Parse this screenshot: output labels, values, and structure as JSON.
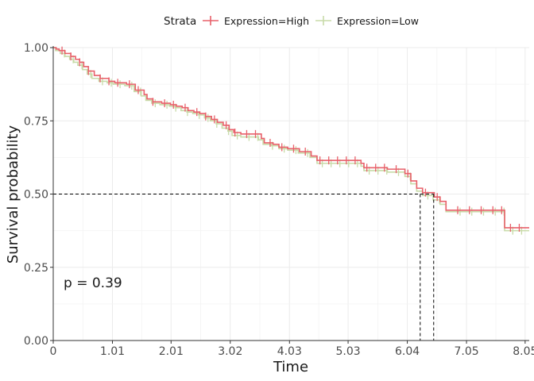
{
  "chart_data": {
    "type": "line",
    "subtype": "kaplan-meier step",
    "xlabel": "Time",
    "ylabel": "Survival probability",
    "xlim": [
      0,
      8.12
    ],
    "ylim": [
      0,
      1
    ],
    "x_ticks": [
      0,
      1.01,
      2.01,
      3.02,
      4.03,
      5.03,
      6.04,
      7.05,
      8.05
    ],
    "x_tick_labels": [
      "0",
      "1.01",
      "2.01",
      "3.02",
      "4.03",
      "5.03",
      "6.04",
      "7.05",
      "8.05"
    ],
    "y_ticks": [
      0,
      0.25,
      0.5,
      0.75,
      1.0
    ],
    "y_tick_labels": [
      "0.00",
      "0.25",
      "0.50",
      "0.75",
      "1.00"
    ],
    "grid": true,
    "legend": {
      "title": "Strata",
      "position": "top",
      "entries": [
        "Expression=High",
        "Expression=Low"
      ]
    },
    "annotation": "p = 0.39",
    "median_line": {
      "y": 0.5,
      "x_values": [
        6.26,
        6.49
      ]
    },
    "series": [
      {
        "name": "Expression=High",
        "color": "#e8606a",
        "steps": [
          [
            0,
            1.0
          ],
          [
            0.05,
            0.995
          ],
          [
            0.1,
            0.99
          ],
          [
            0.2,
            0.98
          ],
          [
            0.3,
            0.97
          ],
          [
            0.38,
            0.96
          ],
          [
            0.45,
            0.95
          ],
          [
            0.52,
            0.935
          ],
          [
            0.6,
            0.92
          ],
          [
            0.7,
            0.905
          ],
          [
            0.8,
            0.895
          ],
          [
            0.95,
            0.885
          ],
          [
            1.05,
            0.88
          ],
          [
            1.25,
            0.875
          ],
          [
            1.4,
            0.855
          ],
          [
            1.55,
            0.84
          ],
          [
            1.6,
            0.825
          ],
          [
            1.7,
            0.815
          ],
          [
            1.85,
            0.81
          ],
          [
            2.0,
            0.805
          ],
          [
            2.1,
            0.8
          ],
          [
            2.2,
            0.795
          ],
          [
            2.3,
            0.785
          ],
          [
            2.4,
            0.78
          ],
          [
            2.5,
            0.775
          ],
          [
            2.6,
            0.765
          ],
          [
            2.7,
            0.755
          ],
          [
            2.8,
            0.745
          ],
          [
            2.9,
            0.735
          ],
          [
            3.0,
            0.72
          ],
          [
            3.08,
            0.71
          ],
          [
            3.2,
            0.705
          ],
          [
            3.55,
            0.69
          ],
          [
            3.6,
            0.675
          ],
          [
            3.75,
            0.67
          ],
          [
            3.85,
            0.66
          ],
          [
            4.0,
            0.655
          ],
          [
            4.2,
            0.645
          ],
          [
            4.4,
            0.63
          ],
          [
            4.5,
            0.615
          ],
          [
            5.25,
            0.605
          ],
          [
            5.3,
            0.59
          ],
          [
            5.7,
            0.585
          ],
          [
            6.0,
            0.57
          ],
          [
            6.1,
            0.545
          ],
          [
            6.2,
            0.52
          ],
          [
            6.3,
            0.505
          ],
          [
            6.5,
            0.49
          ],
          [
            6.6,
            0.475
          ],
          [
            6.7,
            0.445
          ],
          [
            7.7,
            0.385
          ],
          [
            8.12,
            0.385
          ]
        ]
      },
      {
        "name": "Expression=Low",
        "color": "#c8dba9",
        "steps": [
          [
            0,
            1.0
          ],
          [
            0.04,
            0.99
          ],
          [
            0.12,
            0.98
          ],
          [
            0.2,
            0.97
          ],
          [
            0.28,
            0.96
          ],
          [
            0.35,
            0.95
          ],
          [
            0.42,
            0.94
          ],
          [
            0.5,
            0.925
          ],
          [
            0.58,
            0.91
          ],
          [
            0.66,
            0.895
          ],
          [
            0.78,
            0.885
          ],
          [
            0.92,
            0.88
          ],
          [
            1.02,
            0.875
          ],
          [
            1.22,
            0.87
          ],
          [
            1.38,
            0.85
          ],
          [
            1.5,
            0.835
          ],
          [
            1.58,
            0.82
          ],
          [
            1.68,
            0.81
          ],
          [
            1.82,
            0.805
          ],
          [
            1.98,
            0.8
          ],
          [
            2.08,
            0.795
          ],
          [
            2.18,
            0.785
          ],
          [
            2.28,
            0.78
          ],
          [
            2.38,
            0.775
          ],
          [
            2.48,
            0.77
          ],
          [
            2.58,
            0.76
          ],
          [
            2.68,
            0.75
          ],
          [
            2.78,
            0.74
          ],
          [
            2.88,
            0.725
          ],
          [
            2.98,
            0.715
          ],
          [
            3.05,
            0.7
          ],
          [
            3.2,
            0.695
          ],
          [
            3.5,
            0.685
          ],
          [
            3.58,
            0.67
          ],
          [
            3.72,
            0.665
          ],
          [
            3.85,
            0.655
          ],
          [
            4.0,
            0.65
          ],
          [
            4.18,
            0.64
          ],
          [
            4.38,
            0.625
          ],
          [
            4.5,
            0.605
          ],
          [
            5.25,
            0.595
          ],
          [
            5.3,
            0.58
          ],
          [
            5.7,
            0.575
          ],
          [
            6.0,
            0.56
          ],
          [
            6.1,
            0.535
          ],
          [
            6.2,
            0.51
          ],
          [
            6.3,
            0.495
          ],
          [
            6.48,
            0.48
          ],
          [
            6.6,
            0.465
          ],
          [
            6.7,
            0.44
          ],
          [
            7.7,
            0.375
          ],
          [
            8.12,
            0.375
          ]
        ]
      }
    ],
    "censor_times": [
      0.15,
      0.3,
      0.45,
      0.6,
      0.8,
      0.95,
      1.1,
      1.3,
      1.45,
      1.7,
      1.9,
      2.05,
      2.25,
      2.45,
      2.6,
      2.75,
      2.95,
      3.1,
      3.3,
      3.45,
      3.7,
      3.9,
      4.1,
      4.3,
      4.55,
      4.7,
      4.85,
      5.0,
      5.15,
      5.35,
      5.5,
      5.65,
      5.85,
      6.05,
      6.35,
      6.55,
      6.9,
      7.1,
      7.3,
      7.5,
      7.65,
      7.8,
      7.95
    ]
  }
}
